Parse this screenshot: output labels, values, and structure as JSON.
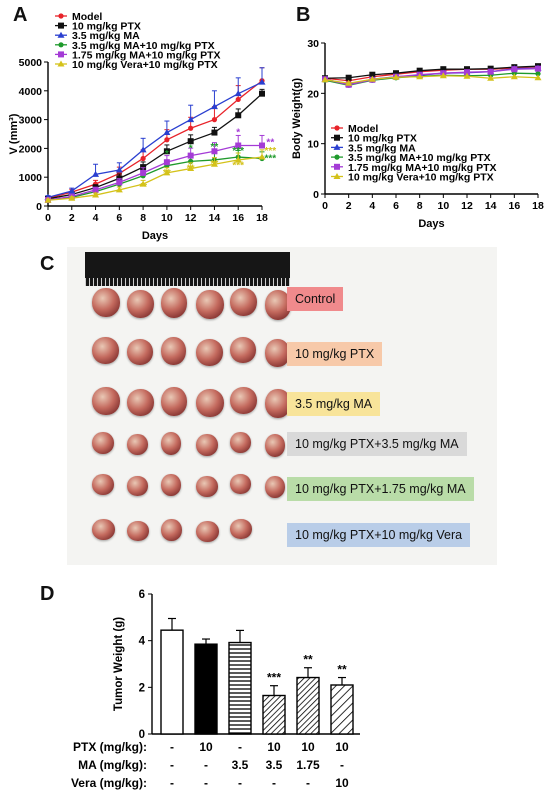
{
  "panels": {
    "a": "A",
    "b": "B",
    "c": "C",
    "d": "D"
  },
  "colors": {
    "model": "#e8232a",
    "ptx": "#111111",
    "ma": "#2a3fd0",
    "ma_ptx": "#1f9a2c",
    "ma175_ptx": "#a43bd6",
    "vera_ptx": "#d4c21a"
  },
  "chart_data": [
    {
      "type": "line",
      "panel": "A",
      "xlabel": "Days",
      "ylabel": "V (mm³)",
      "xlim": [
        0,
        18
      ],
      "ylim": [
        0,
        5000
      ],
      "xticks": [
        0,
        2,
        4,
        6,
        8,
        10,
        12,
        14,
        16,
        18
      ],
      "yticks": [
        0,
        1000,
        2000,
        3000,
        4000,
        5000
      ],
      "legend": "top-left",
      "x": [
        0,
        2,
        4,
        6,
        8,
        10,
        12,
        14,
        16,
        18
      ],
      "series": [
        {
          "name": "Model",
          "color": "#e8232a",
          "values": [
            270,
            480,
            760,
            1130,
            1650,
            2300,
            2700,
            3000,
            3700,
            4350
          ],
          "err": [
            70,
            100,
            130,
            220,
            300,
            350,
            380,
            450,
            480,
            450
          ]
        },
        {
          "name": "10 mg/kg PTX",
          "color": "#111111",
          "values": [
            250,
            400,
            640,
            960,
            1350,
            1900,
            2250,
            2550,
            3150,
            3900
          ],
          "err": [
            50,
            70,
            100,
            150,
            180,
            220,
            220,
            180,
            220,
            150
          ]
        },
        {
          "name": "3.5 mg/kg MA",
          "color": "#2a3fd0",
          "values": [
            300,
            520,
            1100,
            1250,
            1950,
            2550,
            3000,
            3450,
            3900,
            4300
          ],
          "err": [
            60,
            100,
            350,
            250,
            400,
            400,
            500,
            550,
            550,
            500
          ]
        },
        {
          "name": "3.5 mg/kg MA+10 mg/kg PTX",
          "color": "#1f9a2c",
          "values": [
            220,
            300,
            500,
            760,
            1050,
            1400,
            1550,
            1600,
            1700,
            1650
          ],
          "err": [
            40,
            60,
            80,
            120,
            150,
            200,
            220,
            230,
            230,
            230
          ]
        },
        {
          "name": "1.75 mg/kg MA+10 mg/kg PTX",
          "color": "#a43bd6",
          "values": [
            210,
            330,
            560,
            820,
            1150,
            1520,
            1750,
            1900,
            2100,
            2100
          ],
          "err": [
            40,
            60,
            90,
            130,
            180,
            230,
            260,
            300,
            350,
            350
          ]
        },
        {
          "name": "10 mg/kg Vera+10 mg/kg PTX",
          "color": "#d4c21a",
          "values": [
            200,
            270,
            380,
            560,
            760,
            1150,
            1300,
            1450,
            1600,
            1700
          ],
          "err": [
            40,
            50,
            70,
            100,
            130,
            180,
            200,
            230,
            240,
            250
          ]
        }
      ],
      "annotations": [
        {
          "x": 8,
          "y": 550,
          "text": "**",
          "color": "#d4c21a"
        },
        {
          "x": 10,
          "y": 1700,
          "text": "*",
          "color": "#1f9a2c"
        },
        {
          "x": 10,
          "y": 1050,
          "text": "**",
          "color": "#d4c21a"
        },
        {
          "x": 12,
          "y": 1900,
          "text": "*",
          "color": "#1f9a2c"
        },
        {
          "x": 12,
          "y": 1200,
          "text": "**",
          "color": "#d4c21a"
        },
        {
          "x": 14,
          "y": 1950,
          "text": "**",
          "color": "#1f9a2c"
        },
        {
          "x": 14,
          "y": 1350,
          "text": "**",
          "color": "#d4c21a"
        },
        {
          "x": 16,
          "y": 2450,
          "text": "*",
          "color": "#a43bd6"
        },
        {
          "x": 16,
          "y": 1800,
          "text": "***",
          "color": "#1f9a2c"
        },
        {
          "x": 16,
          "y": 1300,
          "text": "***",
          "color": "#d4c21a"
        },
        {
          "x": 18.7,
          "y": 2100,
          "text": "**",
          "color": "#a43bd6"
        },
        {
          "x": 18.7,
          "y": 1800,
          "text": "***",
          "color": "#d4c21a"
        },
        {
          "x": 18.7,
          "y": 1550,
          "text": "***",
          "color": "#1f9a2c"
        }
      ]
    },
    {
      "type": "line",
      "panel": "B",
      "xlabel": "Days",
      "ylabel": "Body Weight(g)",
      "xlim": [
        0,
        18
      ],
      "ylim": [
        0,
        30
      ],
      "xticks": [
        0,
        2,
        4,
        6,
        8,
        10,
        12,
        14,
        16,
        18
      ],
      "yticks": [
        0,
        10,
        20,
        30
      ],
      "legend": "bottom-left",
      "x": [
        0,
        2,
        4,
        6,
        8,
        10,
        12,
        14,
        16,
        18
      ],
      "series": [
        {
          "name": "Model",
          "color": "#e8232a",
          "values": [
            23.0,
            22.5,
            23.3,
            23.8,
            24.3,
            24.6,
            24.8,
            24.8,
            25.0,
            25.3
          ]
        },
        {
          "name": "10 mg/kg PTX",
          "color": "#111111",
          "values": [
            23.0,
            23.1,
            23.7,
            24.0,
            24.5,
            24.8,
            24.8,
            24.9,
            25.2,
            25.4
          ]
        },
        {
          "name": "3.5 mg/kg MA",
          "color": "#2a3fd0",
          "values": [
            22.8,
            21.8,
            22.8,
            23.3,
            23.6,
            24.0,
            24.1,
            24.3,
            24.9,
            25.0
          ]
        },
        {
          "name": "3.5 mg/kg MA+10 mg/kg PTX",
          "color": "#1f9a2c",
          "values": [
            22.6,
            21.6,
            22.6,
            23.1,
            23.4,
            23.6,
            23.5,
            23.6,
            24.0,
            23.9
          ]
        },
        {
          "name": "1.75 mg/kg MA+10 mg/kg PTX",
          "color": "#a43bd6",
          "values": [
            22.8,
            21.7,
            22.7,
            23.3,
            23.7,
            24.0,
            24.2,
            24.3,
            24.8,
            24.9
          ]
        },
        {
          "name": "10 mg/kg Vera+10 mg/kg PTX",
          "color": "#d4c21a",
          "values": [
            22.7,
            22.0,
            22.8,
            23.2,
            23.3,
            23.5,
            23.4,
            23.0,
            23.3,
            23.1
          ]
        }
      ]
    },
    {
      "type": "bar",
      "panel": "D",
      "ylabel": "Tumor Weight (g)",
      "ylim": [
        0,
        6
      ],
      "yticks": [
        0,
        2,
        4,
        6
      ],
      "values": [
        4.45,
        3.85,
        3.92,
        1.65,
        2.42,
        2.1
      ],
      "err": [
        0.5,
        0.22,
        0.52,
        0.42,
        0.42,
        0.32
      ],
      "fills": [
        "open",
        "solid",
        "horizontal-stripes",
        "diagonal-dense",
        "diagonal-dense",
        "diagonal-wide"
      ],
      "significance": [
        "",
        "",
        "",
        "***",
        "**",
        "**"
      ],
      "row_labels": [
        "PTX (mg/kg):",
        "MA (mg/kg):",
        "Vera (mg/kg):"
      ],
      "rows": [
        [
          "-",
          "10",
          "-",
          "10",
          "10",
          "10"
        ],
        [
          "-",
          "-",
          "3.5",
          "3.5",
          "1.75",
          "-"
        ],
        [
          "-",
          "-",
          "-",
          "-",
          "-",
          "10"
        ]
      ]
    }
  ],
  "photo": {
    "groups": [
      {
        "label": "Control",
        "color": "#f08a8c",
        "count": 6
      },
      {
        "label": "10 mg/kg PTX",
        "color": "#f7c9a9",
        "count": 6
      },
      {
        "label": "3.5 mg/kg MA",
        "color": "#f8e49a",
        "count": 6
      },
      {
        "label": "10 mg/kg PTX+3.5 mg/kg MA",
        "color": "#d9d9d9",
        "count": 6
      },
      {
        "label": "10 mg/kg PTX+1.75 mg/kg MA",
        "color": "#b9dca8",
        "count": 6
      },
      {
        "label": "10 mg/kg PTX+10 mg/kg Vera",
        "color": "#b9cde8",
        "count": 5
      }
    ]
  }
}
